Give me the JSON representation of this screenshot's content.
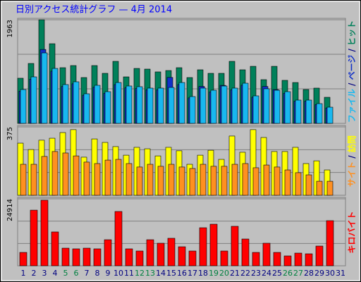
{
  "chart_data": [
    {
      "type": "bar",
      "title": "日別アクセス統計グラフ — 4月 2014",
      "ylim": [
        0,
        1963
      ],
      "yticks": [
        1963
      ],
      "grid": true,
      "legend_separator": " / ",
      "series": [
        {
          "name": "ヒット",
          "color": "#00805a",
          "values": [
            855,
            1135,
            1963,
            1509,
            1055,
            1095,
            868,
            1095,
            948,
            1175,
            881,
            1041,
            1028,
            975,
            1001,
            1055,
            868,
            1015,
            948,
            948,
            1175,
            1015,
            1081,
            828,
            1081,
            815,
            774,
            641,
            668,
            494,
            null
          ]
        },
        {
          "name": "ページ",
          "color": "#1030c8",
          "values": [
            609,
            837,
            1400,
            989,
            698,
            749,
            533,
            685,
            571,
            735,
            673,
            660,
            635,
            635,
            870,
            735,
            483,
            700,
            597,
            720,
            635,
            723,
            495,
            700,
            640,
            571,
            419,
            419,
            355,
            292,
            null
          ]
        },
        {
          "name": "ファイル",
          "color": "#18b8f0",
          "values": [
            641,
            881,
            1335,
            1041,
            735,
            788,
            561,
            721,
            601,
            774,
            708,
            695,
            668,
            668,
            681,
            774,
            508,
            668,
            628,
            708,
            668,
            761,
            521,
            655,
            628,
            601,
            441,
            441,
            374,
            307,
            null
          ]
        }
      ]
    },
    {
      "type": "bar",
      "ylim": [
        0,
        375
      ],
      "yticks": [
        375
      ],
      "grid": true,
      "legend_separator": " / ",
      "series": [
        {
          "name": "訪問",
          "color": "#ffff00",
          "values": [
            286,
            251,
            302,
            313,
            344,
            360,
            209,
            309,
            290,
            267,
            220,
            263,
            255,
            216,
            263,
            244,
            170,
            220,
            247,
            197,
            325,
            236,
            360,
            317,
            240,
            240,
            263,
            174,
            189,
            139,
            null
          ]
        },
        {
          "name": "サイト",
          "color": "#ff9020",
          "values": [
            170,
            170,
            213,
            240,
            232,
            216,
            182,
            174,
            193,
            197,
            174,
            155,
            170,
            159,
            170,
            155,
            147,
            170,
            159,
            159,
            170,
            174,
            151,
            166,
            155,
            139,
            124,
            112,
            77,
            77,
            null
          ]
        }
      ]
    },
    {
      "type": "bar",
      "ylim": [
        0,
        24914
      ],
      "yticks": [
        24914
      ],
      "grid": true,
      "categories": [
        "1",
        "2",
        "3",
        "4",
        "5",
        "6",
        "7",
        "8",
        "9",
        "10",
        "11",
        "12",
        "13",
        "14",
        "15",
        "16",
        "17",
        "18",
        "19",
        "20",
        "21",
        "22",
        "23",
        "24",
        "25",
        "26",
        "27",
        "28",
        "29",
        "30",
        "31"
      ],
      "category_colors": [
        "#000080",
        "#000080",
        "#000080",
        "#000080",
        "#008040",
        "#008040",
        "#000080",
        "#000080",
        "#000080",
        "#000080",
        "#000080",
        "#008040",
        "#008040",
        "#000080",
        "#000080",
        "#000080",
        "#000080",
        "#000080",
        "#008040",
        "#008040",
        "#000080",
        "#000080",
        "#000080",
        "#000080",
        "#000080",
        "#008040",
        "#008040",
        "#000080",
        "#000080",
        "#000080",
        "#000080"
      ],
      "series": [
        {
          "name": "キロバイト",
          "color": "#ff0000",
          "values": [
            4980,
            20700,
            24390,
            12590,
            6560,
            6300,
            6560,
            6300,
            9700,
            20200,
            6300,
            5500,
            9700,
            8390,
            10230,
            7080,
            5500,
            14160,
            15470,
            5500,
            14690,
            9960,
            4980,
            8390,
            4980,
            3670,
            4720,
            4460,
            7340,
            16790,
            null
          ]
        }
      ]
    }
  ]
}
